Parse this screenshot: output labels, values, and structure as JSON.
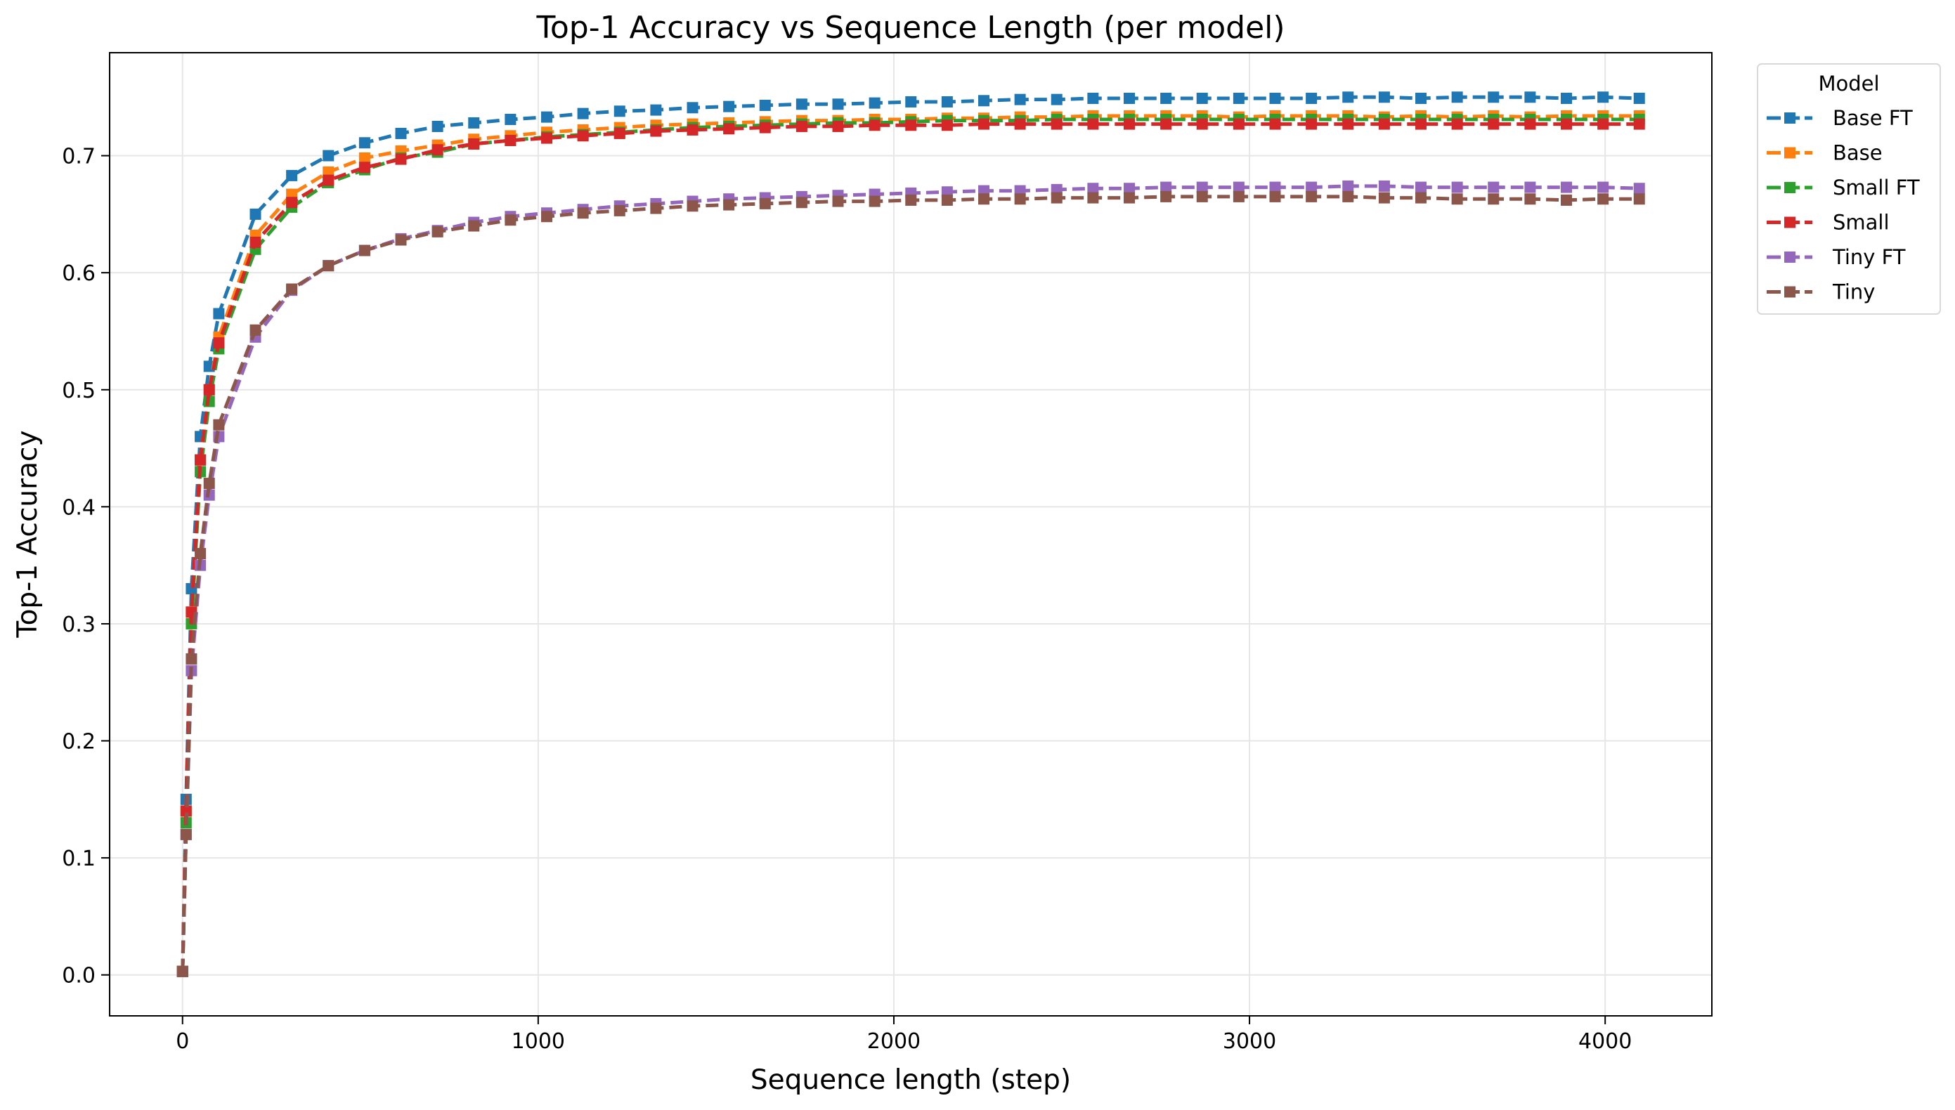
{
  "chart_data": {
    "type": "line",
    "title": "Top-1 Accuracy vs Sequence Length (per model)",
    "xlabel": "Sequence length (step)",
    "ylabel": "Top-1 Accuracy",
    "xlim": [
      -205,
      4300
    ],
    "ylim": [
      -0.035,
      0.788
    ],
    "xticks": [
      0,
      1000,
      2000,
      3000,
      4000
    ],
    "yticks": [
      0.0,
      0.1,
      0.2,
      0.3,
      0.4,
      0.5,
      0.6,
      0.7
    ],
    "xtick_labels": [
      "0",
      "1000",
      "2000",
      "3000",
      "4000"
    ],
    "ytick_labels": [
      "0.0",
      "0.1",
      "0.2",
      "0.3",
      "0.4",
      "0.5",
      "0.6",
      "0.7"
    ],
    "grid": true,
    "legend": {
      "title": "Model",
      "placement": "outside-top-right"
    },
    "line_style": "dashed",
    "marker": "square",
    "x": [
      0,
      10,
      25,
      50,
      75,
      102,
      205,
      307,
      410,
      512,
      614,
      717,
      819,
      922,
      1024,
      1126,
      1229,
      1331,
      1434,
      1536,
      1638,
      1741,
      1843,
      1946,
      2048,
      2150,
      2253,
      2355,
      2458,
      2560,
      2662,
      2765,
      2867,
      2970,
      3072,
      3174,
      3277,
      3379,
      3482,
      3584,
      3686,
      3789,
      3891,
      3994,
      4096
    ],
    "series": [
      {
        "name": "Base FT",
        "color": "#1f77b4",
        "values": [
          0.003,
          0.15,
          0.33,
          0.46,
          0.52,
          0.565,
          0.65,
          0.683,
          0.7,
          0.711,
          0.719,
          0.725,
          0.728,
          0.731,
          0.733,
          0.736,
          0.738,
          0.739,
          0.741,
          0.742,
          0.743,
          0.744,
          0.744,
          0.745,
          0.746,
          0.746,
          0.747,
          0.748,
          0.748,
          0.749,
          0.749,
          0.749,
          0.749,
          0.749,
          0.749,
          0.749,
          0.75,
          0.75,
          0.749,
          0.75,
          0.75,
          0.75,
          0.749,
          0.75,
          0.749
        ]
      },
      {
        "name": "Base",
        "color": "#ff7f0e",
        "values": [
          0.003,
          0.14,
          0.31,
          0.44,
          0.5,
          0.545,
          0.632,
          0.667,
          0.686,
          0.698,
          0.704,
          0.709,
          0.714,
          0.717,
          0.72,
          0.722,
          0.724,
          0.726,
          0.727,
          0.728,
          0.729,
          0.73,
          0.73,
          0.731,
          0.731,
          0.732,
          0.732,
          0.733,
          0.733,
          0.734,
          0.734,
          0.734,
          0.734,
          0.733,
          0.734,
          0.734,
          0.734,
          0.733,
          0.734,
          0.733,
          0.734,
          0.733,
          0.734,
          0.734,
          0.734
        ]
      },
      {
        "name": "Small FT",
        "color": "#2ca02c",
        "values": [
          0.003,
          0.13,
          0.3,
          0.43,
          0.49,
          0.535,
          0.62,
          0.656,
          0.677,
          0.688,
          0.698,
          0.703,
          0.71,
          0.713,
          0.716,
          0.718,
          0.72,
          0.722,
          0.724,
          0.725,
          0.726,
          0.727,
          0.728,
          0.728,
          0.729,
          0.73,
          0.73,
          0.73,
          0.731,
          0.731,
          0.731,
          0.731,
          0.731,
          0.731,
          0.731,
          0.731,
          0.731,
          0.731,
          0.731,
          0.731,
          0.731,
          0.731,
          0.731,
          0.731,
          0.731
        ]
      },
      {
        "name": "Small",
        "color": "#d62728",
        "values": [
          0.003,
          0.14,
          0.31,
          0.44,
          0.5,
          0.54,
          0.626,
          0.66,
          0.679,
          0.69,
          0.697,
          0.705,
          0.71,
          0.713,
          0.715,
          0.717,
          0.719,
          0.721,
          0.722,
          0.723,
          0.724,
          0.725,
          0.725,
          0.726,
          0.726,
          0.726,
          0.727,
          0.727,
          0.727,
          0.727,
          0.727,
          0.727,
          0.727,
          0.727,
          0.727,
          0.727,
          0.727,
          0.727,
          0.727,
          0.727,
          0.727,
          0.727,
          0.727,
          0.727,
          0.727
        ]
      },
      {
        "name": "Tiny FT",
        "color": "#9467bd",
        "values": [
          0.003,
          0.12,
          0.26,
          0.35,
          0.41,
          0.46,
          0.545,
          0.585,
          0.606,
          0.619,
          0.629,
          0.636,
          0.643,
          0.648,
          0.651,
          0.654,
          0.657,
          0.659,
          0.661,
          0.663,
          0.664,
          0.665,
          0.666,
          0.667,
          0.668,
          0.669,
          0.67,
          0.67,
          0.671,
          0.672,
          0.672,
          0.673,
          0.673,
          0.673,
          0.673,
          0.673,
          0.674,
          0.674,
          0.673,
          0.673,
          0.673,
          0.673,
          0.673,
          0.673,
          0.672
        ]
      },
      {
        "name": "Tiny",
        "color": "#8c564b",
        "values": [
          0.003,
          0.12,
          0.27,
          0.36,
          0.42,
          0.47,
          0.551,
          0.586,
          0.606,
          0.619,
          0.628,
          0.635,
          0.64,
          0.645,
          0.648,
          0.651,
          0.653,
          0.655,
          0.657,
          0.658,
          0.659,
          0.66,
          0.661,
          0.661,
          0.662,
          0.662,
          0.663,
          0.663,
          0.664,
          0.664,
          0.664,
          0.665,
          0.665,
          0.665,
          0.665,
          0.665,
          0.665,
          0.664,
          0.664,
          0.663,
          0.663,
          0.663,
          0.662,
          0.663,
          0.663
        ]
      }
    ]
  }
}
